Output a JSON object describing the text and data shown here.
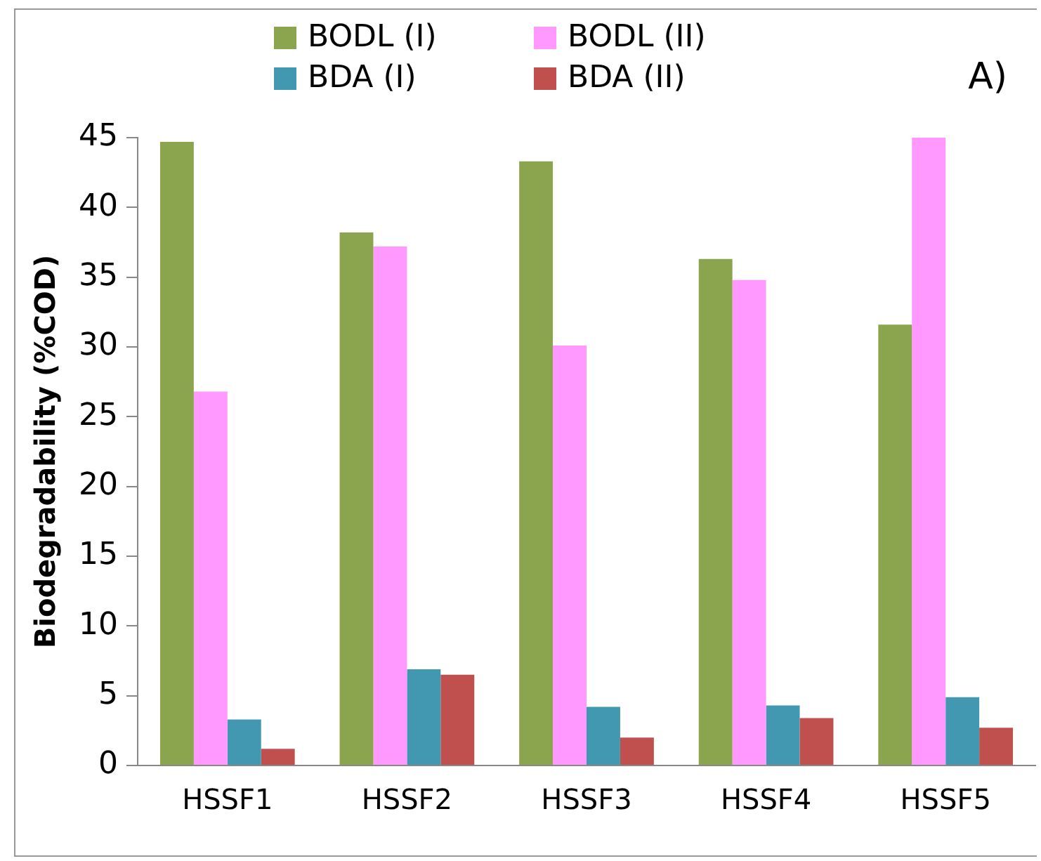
{
  "chart_data": {
    "type": "bar",
    "ylabel": "Biodegradability (%COD)",
    "categories": [
      "HSSF1",
      "HSSF2",
      "HSSF3",
      "HSSF4",
      "HSSF5"
    ],
    "series": [
      {
        "name": "BODL (I)",
        "color": "#8aa54e",
        "values": [
          44.7,
          38.2,
          43.3,
          36.3,
          31.6
        ]
      },
      {
        "name": "BODL (II)",
        "color": "#ff99ff",
        "values": [
          26.8,
          37.2,
          30.1,
          34.8,
          45
        ]
      },
      {
        "name": "BDA (I)",
        "color": "#4298b0",
        "values": [
          3.3,
          6.9,
          4.2,
          4.3,
          4.9
        ]
      },
      {
        "name": "BDA (II)",
        "color": "#c0504d",
        "values": [
          1.2,
          6.5,
          2.0,
          3.4,
          2.7
        ]
      }
    ],
    "ylim": [
      0,
      45
    ],
    "yticks": [
      0,
      5,
      10,
      15,
      20,
      25,
      30,
      35,
      40,
      45
    ],
    "grid": false,
    "legend": "top",
    "annotations": [
      "A)"
    ]
  }
}
